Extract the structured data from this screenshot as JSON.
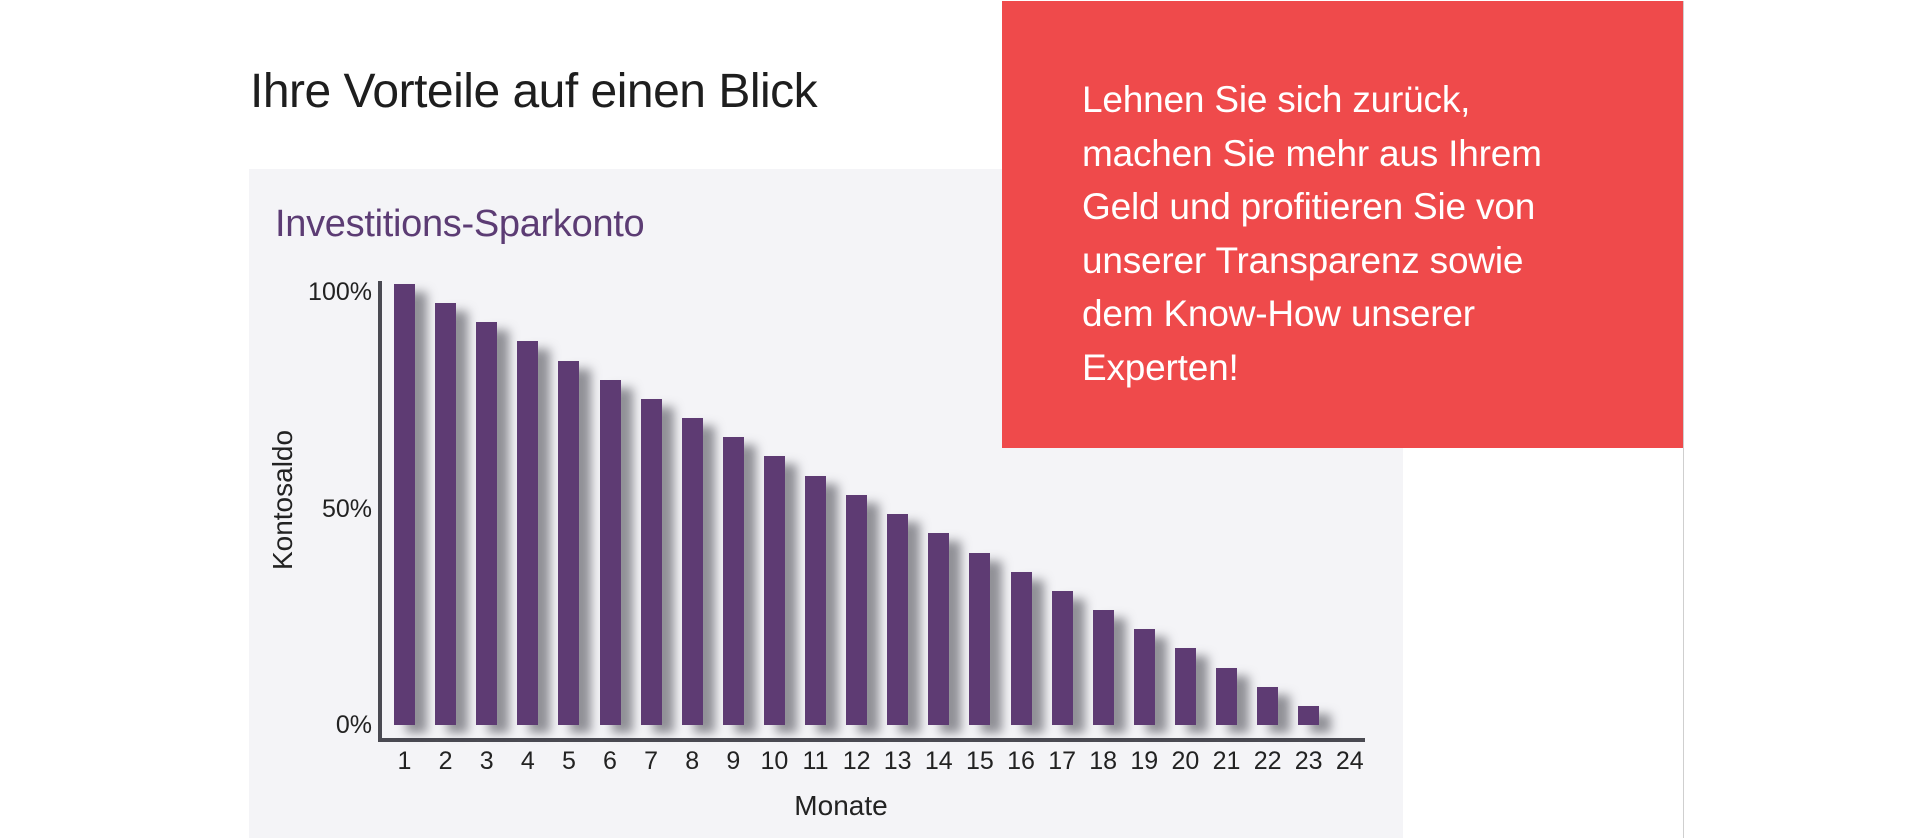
{
  "header": {
    "title": "Ihre Vorteile auf einen Blick"
  },
  "promo": {
    "lines": [
      "Lehnen Sie sich zurück,",
      "machen Sie mehr aus Ihrem",
      "Geld und profitieren Sie von",
      "unserer Transparenz sowie",
      "dem Know-How unserer",
      "Experten!"
    ],
    "background_color": "#ef4a4b",
    "text_color": "#ffffff"
  },
  "chart": {
    "title": "Investitions-Sparkonto",
    "ylabel": "Kontosaldo",
    "xlabel": "Monate",
    "y_ticks": [
      "100%",
      "50%",
      "0%"
    ],
    "bar_color": "#5e3b73"
  },
  "chart_data": {
    "type": "bar",
    "title": "Investitions-Sparkonto",
    "xlabel": "Monate",
    "ylabel": "Kontosaldo",
    "categories": [
      "1",
      "2",
      "3",
      "4",
      "5",
      "6",
      "7",
      "8",
      "9",
      "10",
      "11",
      "12",
      "13",
      "14",
      "15",
      "16",
      "17",
      "18",
      "19",
      "20",
      "21",
      "22",
      "23",
      "24"
    ],
    "values": [
      100,
      95.7,
      91.3,
      87.0,
      82.6,
      78.3,
      73.9,
      69.6,
      65.2,
      60.9,
      56.5,
      52.2,
      47.8,
      43.5,
      39.1,
      34.8,
      30.4,
      26.1,
      21.7,
      17.4,
      13.0,
      8.7,
      4.3,
      0
    ],
    "y_tick_labels": [
      "0%",
      "50%",
      "100%"
    ],
    "ylim": [
      0,
      100
    ],
    "unit": "%",
    "grid": false,
    "legend": null
  }
}
